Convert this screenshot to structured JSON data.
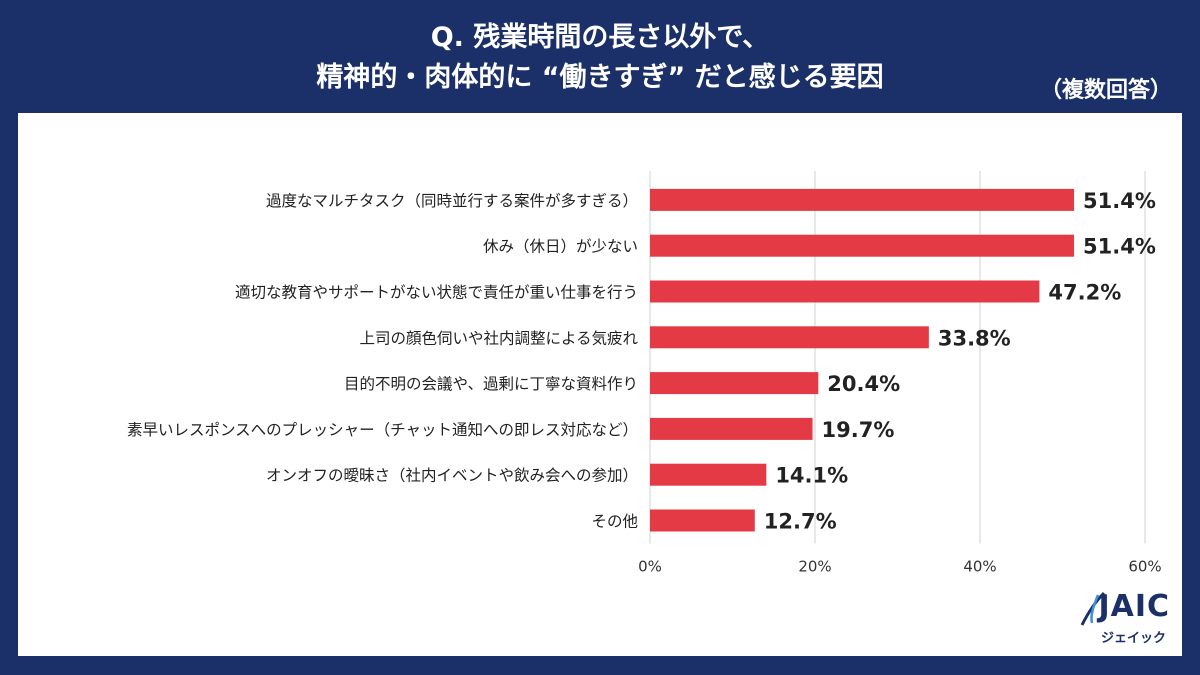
{
  "header": {
    "title_line1": "Q. 残業時間の長さ以外で、",
    "title_line2": "精神的・肉体的に “働きすぎ” だと感じる要因",
    "note": "（複数回答）"
  },
  "logo": {
    "name": "JAIC",
    "subtitle": "ジェイック"
  },
  "colors": {
    "background": "#1b3068",
    "bar": "#e43a45",
    "grid": "#d0d0d0"
  },
  "chart_data": {
    "type": "bar",
    "orientation": "horizontal",
    "categories": [
      "過度なマルチタスク（同時並行する案件が多すぎる）",
      "休み（休日）が少ない",
      "適切な教育やサポートがない状態で責任が重い仕事を行う",
      "上司の顔色伺いや社内調整による気疲れ",
      "目的不明の会議や、過剰に丁寧な資料作り",
      "素早いレスポンスへのプレッシャー（チャット通知への即レス対応など）",
      "オンオフの曖昧さ（社内イベントや飲み会への参加）",
      "その他"
    ],
    "values": [
      51.4,
      51.4,
      47.2,
      33.8,
      20.4,
      19.7,
      14.1,
      12.7
    ],
    "value_labels": [
      "51.4%",
      "51.4%",
      "47.2%",
      "33.8%",
      "20.4%",
      "19.7%",
      "14.1%",
      "12.7%"
    ],
    "xlim": [
      0,
      60
    ],
    "xticks": [
      0,
      20,
      40,
      60
    ],
    "xtick_labels": [
      "0%",
      "20%",
      "40%",
      "60%"
    ],
    "grid": true,
    "legend": "none"
  }
}
